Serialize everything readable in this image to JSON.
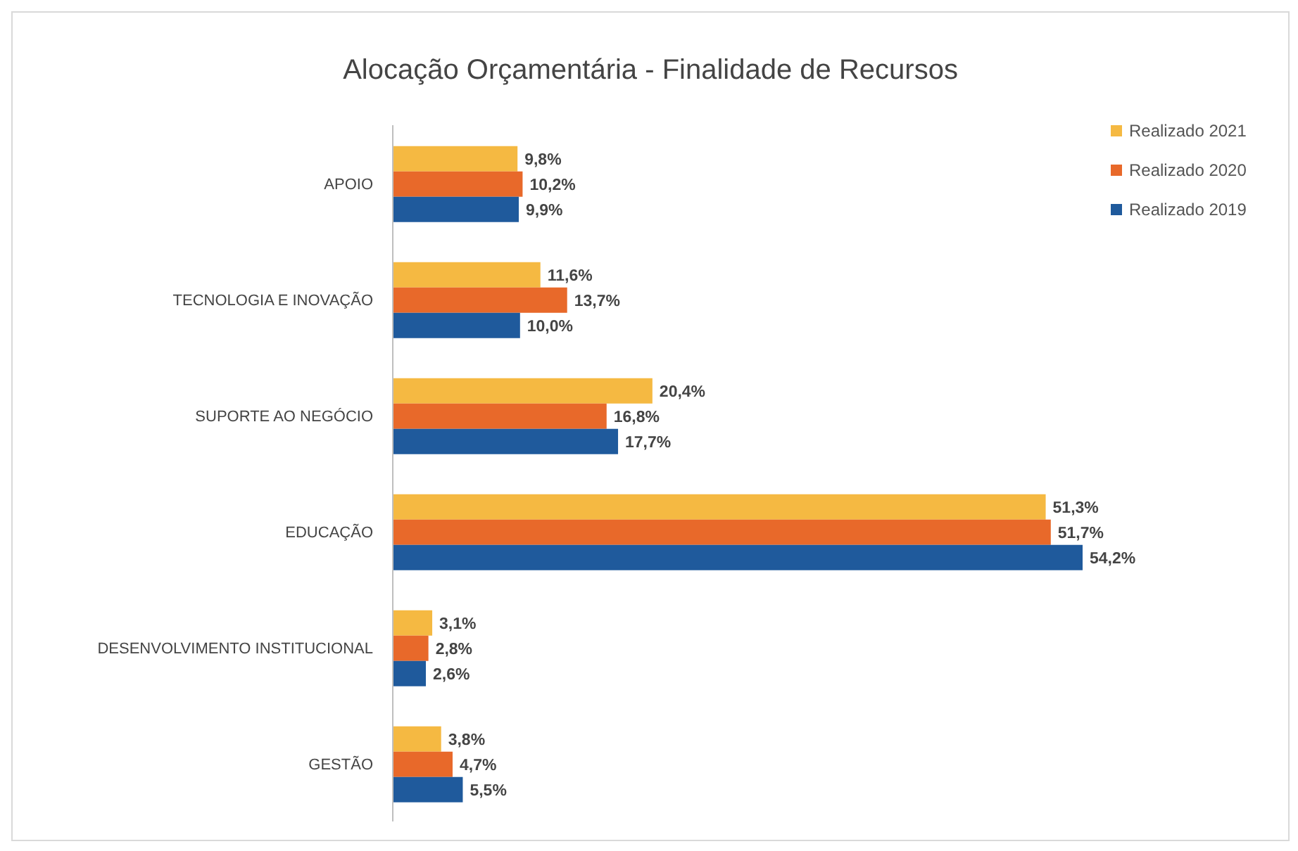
{
  "chart_data": {
    "type": "bar",
    "orientation": "horizontal",
    "title": "Alocação Orçamentária - Finalidade de Recursos",
    "categories": [
      "APOIO",
      "TECNOLOGIA E INOVAÇÃO",
      "SUPORTE AO NEGÓCIO",
      "EDUCAÇÃO",
      "DESENVOLVIMENTO INSTITUCIONAL",
      "GESTÃO"
    ],
    "series": [
      {
        "name": "Realizado 2021",
        "color": "#f5b942",
        "values": [
          9.8,
          11.6,
          20.4,
          51.3,
          3.1,
          3.8
        ],
        "value_labels": [
          "9,8%",
          "11,6%",
          "20,4%",
          "51,3%",
          "3,1%",
          "3,8%"
        ]
      },
      {
        "name": "Realizado 2020",
        "color": "#e8692a",
        "values": [
          10.2,
          13.7,
          16.8,
          51.7,
          2.8,
          4.7
        ],
        "value_labels": [
          "10,2%",
          "13,7%",
          "16,8%",
          "51,7%",
          "2,8%",
          "4,7%"
        ]
      },
      {
        "name": "Realizado 2019",
        "color": "#1f5a9c",
        "values": [
          9.9,
          10.0,
          17.7,
          54.2,
          2.6,
          5.5
        ],
        "value_labels": [
          "9,9%",
          "10,0%",
          "17,7%",
          "54,2%",
          "2,6%",
          "5,5%"
        ]
      }
    ],
    "legend": "top right"
  }
}
